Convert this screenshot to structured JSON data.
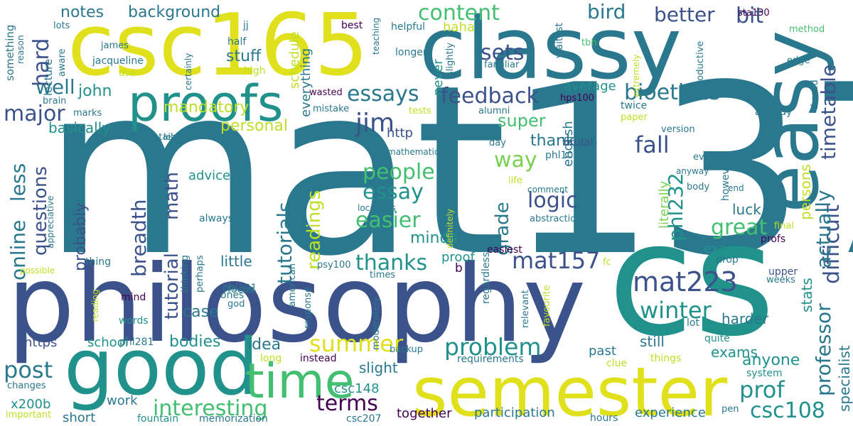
{
  "palette": {
    "dark_purple": "#440154",
    "indigo": "#3b528b",
    "slate": "#414487",
    "teal_blue": "#2a788e",
    "teal": "#21918c",
    "sea_green": "#22a884",
    "green": "#43bf71",
    "lime": "#7ad151",
    "yellow_green": "#bddf26",
    "yellow": "#e0e11c"
  },
  "words": [
    {
      "text": "mat137",
      "color": "teal_blue"
    },
    {
      "text": "cs",
      "color": "teal"
    },
    {
      "text": "philosophy",
      "color": "indigo"
    },
    {
      "text": "classy",
      "color": "teal_blue"
    },
    {
      "text": "csc165",
      "color": "yellow"
    },
    {
      "text": "easy",
      "color": "teal_blue"
    },
    {
      "text": "semester",
      "color": "yellow"
    },
    {
      "text": "good",
      "color": "teal"
    },
    {
      "text": "proofs",
      "color": "teal"
    },
    {
      "text": "time",
      "color": "green"
    },
    {
      "text": "mat223",
      "color": "indigo"
    },
    {
      "text": "interesting",
      "color": "green"
    },
    {
      "text": "problem",
      "color": "teal"
    },
    {
      "text": "winter",
      "color": "teal"
    },
    {
      "text": "summer",
      "color": "yellow"
    },
    {
      "text": "great",
      "color": "green"
    },
    {
      "text": "essay",
      "color": "teal"
    },
    {
      "text": "essays",
      "color": "teal_blue"
    },
    {
      "text": "prof",
      "color": "teal"
    },
    {
      "text": "terms",
      "color": "dark_purple"
    },
    {
      "text": "csc108",
      "color": "teal"
    },
    {
      "text": "post",
      "color": "teal_blue"
    },
    {
      "text": "feedback",
      "color": "indigo"
    },
    {
      "text": "bioethics",
      "color": "teal_blue"
    },
    {
      "text": "logic",
      "color": "indigo"
    },
    {
      "text": "thanks",
      "color": "teal"
    },
    {
      "text": "mat157",
      "color": "indigo"
    },
    {
      "text": "people",
      "color": "green"
    },
    {
      "text": "easier",
      "color": "green"
    },
    {
      "text": "jim",
      "color": "indigo"
    },
    {
      "text": "fall",
      "color": "indigo"
    },
    {
      "text": "way",
      "color": "lime"
    },
    {
      "text": "content",
      "color": "green"
    },
    {
      "text": "bird",
      "color": "teal_blue"
    },
    {
      "text": "sets",
      "color": "indigo"
    },
    {
      "text": "well",
      "color": "teal_blue"
    },
    {
      "text": "major",
      "color": "indigo"
    },
    {
      "text": "hard",
      "color": "indigo"
    },
    {
      "text": "better",
      "color": "indigo"
    },
    {
      "text": "bit",
      "color": "indigo"
    },
    {
      "text": "timetable",
      "color": "indigo"
    },
    {
      "text": "difficult",
      "color": "indigo"
    },
    {
      "text": "professor",
      "color": "teal_blue"
    },
    {
      "text": "actually",
      "color": "teal_blue"
    },
    {
      "text": "phl232",
      "color": "teal"
    },
    {
      "text": "breadth",
      "color": "indigo"
    },
    {
      "text": "tutorial",
      "color": "indigo"
    },
    {
      "text": "math",
      "color": "indigo"
    },
    {
      "text": "tutorials",
      "color": "teal_blue"
    },
    {
      "text": "readings",
      "color": "yellow_green"
    },
    {
      "text": "online",
      "color": "teal_blue"
    },
    {
      "text": "less",
      "color": "teal_blue"
    },
    {
      "text": "questions",
      "color": "indigo"
    },
    {
      "text": "grade",
      "color": "teal_blue"
    },
    {
      "text": "personal",
      "color": "yellow_green"
    },
    {
      "text": "mandatory",
      "color": "yellow_green"
    },
    {
      "text": "notes",
      "color": "teal_blue"
    },
    {
      "text": "background",
      "color": "teal_blue"
    },
    {
      "text": "stuff",
      "color": "teal_blue"
    },
    {
      "text": "john",
      "color": "teal"
    },
    {
      "text": "super",
      "color": "green"
    },
    {
      "text": "thank",
      "color": "teal_blue"
    },
    {
      "text": "minds",
      "color": "teal"
    },
    {
      "text": "anyone",
      "color": "teal"
    },
    {
      "text": "bodies",
      "color": "teal"
    },
    {
      "text": "idea",
      "color": "teal_blue"
    },
    {
      "text": "case",
      "color": "teal_blue"
    },
    {
      "text": "exams",
      "color": "teal"
    },
    {
      "text": "harder",
      "color": "teal_blue"
    },
    {
      "text": "luck",
      "color": "teal_blue"
    },
    {
      "text": "probably",
      "color": "indigo"
    },
    {
      "text": "little",
      "color": "teal_blue"
    },
    {
      "text": "basically",
      "color": "teal"
    },
    {
      "text": "persons",
      "color": "yellow_green"
    },
    {
      "text": "stats",
      "color": "teal"
    },
    {
      "text": "specialist",
      "color": "teal_blue"
    },
    {
      "text": "literally",
      "color": "lime"
    },
    {
      "text": "still",
      "color": "teal_blue"
    },
    {
      "text": "exam",
      "color": "teal"
    },
    {
      "text": "slight",
      "color": "teal_blue"
    },
    {
      "text": "work",
      "color": "teal_blue"
    },
    {
      "text": "csc148",
      "color": "teal"
    },
    {
      "text": "together",
      "color": "dark_purple"
    },
    {
      "text": "participation",
      "color": "teal_blue"
    },
    {
      "text": "experience",
      "color": "teal_blue"
    },
    {
      "text": "short",
      "color": "teal_blue"
    },
    {
      "text": "x200b",
      "color": "teal"
    },
    {
      "text": "https",
      "color": "indigo"
    },
    {
      "text": "school",
      "color": "teal"
    },
    {
      "text": "advice",
      "color": "teal"
    },
    {
      "text": "http",
      "color": "indigo"
    },
    {
      "text": "past",
      "color": "teal_blue"
    },
    {
      "text": "schedule",
      "color": "yellow_green"
    },
    {
      "text": "everything",
      "color": "teal_blue"
    },
    {
      "text": "average",
      "color": "teal"
    },
    {
      "text": "english",
      "color": "teal_blue"
    },
    {
      "text": "haha",
      "color": "yellow_green"
    },
    {
      "text": "never",
      "color": "teal"
    },
    {
      "text": "proof",
      "color": "teal"
    },
    {
      "text": "easiest",
      "color": "dark_purple"
    },
    {
      "text": "phl100",
      "color": "teal_blue"
    },
    {
      "text": "brutal",
      "color": "indigo"
    },
    {
      "text": "day",
      "color": "teal_blue"
    },
    {
      "text": "phl201",
      "color": "teal_blue"
    },
    {
      "text": "phl281",
      "color": "teal_blue"
    },
    {
      "text": "psy100",
      "color": "teal_blue"
    },
    {
      "text": "focus",
      "color": "teal_blue"
    },
    {
      "text": "ones",
      "color": "teal_blue"
    },
    {
      "text": "god",
      "color": "teal_blue"
    },
    {
      "text": "mind",
      "color": "dark_purple"
    },
    {
      "text": "thing",
      "color": "teal_blue"
    },
    {
      "text": "words",
      "color": "teal"
    },
    {
      "text": "instead",
      "color": "dark_purple"
    },
    {
      "text": "long",
      "color": "yellow_green"
    },
    {
      "text": "requirements",
      "color": "teal_blue"
    },
    {
      "text": "backup",
      "color": "teal_blue"
    },
    {
      "text": "things",
      "color": "yellow_green"
    },
    {
      "text": "clue",
      "color": "yellow_green"
    },
    {
      "text": "system",
      "color": "teal"
    },
    {
      "text": "hours",
      "color": "teal_blue"
    },
    {
      "text": "pen",
      "color": "teal_blue"
    },
    {
      "text": "quite",
      "color": "teal"
    },
    {
      "text": "lot",
      "color": "teal_blue"
    },
    {
      "text": "weeks",
      "color": "teal_blue"
    },
    {
      "text": "upper",
      "color": "indigo"
    },
    {
      "text": "week",
      "color": "teal_blue"
    },
    {
      "text": "profs",
      "color": "dark_purple"
    },
    {
      "text": "drop",
      "color": "teal_blue"
    },
    {
      "text": "end",
      "color": "teal_blue"
    },
    {
      "text": "body",
      "color": "teal_blue"
    },
    {
      "text": "anyway",
      "color": "teal_blue"
    },
    {
      "text": "ever",
      "color": "teal_blue"
    },
    {
      "text": "version",
      "color": "teal_blue"
    },
    {
      "text": "final",
      "color": "yellow_green"
    },
    {
      "text": "however",
      "color": "teal_blue"
    },
    {
      "text": "already",
      "color": "teal_blue"
    },
    {
      "text": "twice",
      "color": "teal_blue"
    },
    {
      "text": "paper",
      "color": "yellow_green"
    },
    {
      "text": "thread",
      "color": "teal_blue"
    },
    {
      "text": "edge",
      "color": "teal_blue"
    },
    {
      "text": "method",
      "color": "green"
    },
    {
      "text": "sta130",
      "color": "dark_purple"
    },
    {
      "text": "waitlist",
      "color": "teal_blue"
    },
    {
      "text": "tbh",
      "color": "green"
    },
    {
      "text": "productive",
      "color": "teal_blue"
    },
    {
      "text": "extremely",
      "color": "yellow_green"
    },
    {
      "text": "hps100",
      "color": "dark_purple"
    },
    {
      "text": "alumni",
      "color": "teal_blue"
    },
    {
      "text": "familiar",
      "color": "teal_blue"
    },
    {
      "text": "longer",
      "color": "teal_blue"
    },
    {
      "text": "best",
      "color": "dark_purple"
    },
    {
      "text": "helpful",
      "color": "teal_blue"
    },
    {
      "text": "teaching",
      "color": "teal_blue"
    },
    {
      "text": "slightly",
      "color": "teal_blue"
    },
    {
      "text": "tests",
      "color": "yellow_green"
    },
    {
      "text": "mistake",
      "color": "teal_blue"
    },
    {
      "text": "wasted",
      "color": "dark_purple"
    },
    {
      "text": "high",
      "color": "yellow_green"
    },
    {
      "text": "half",
      "color": "teal_blue"
    },
    {
      "text": "jj",
      "color": "teal_blue"
    },
    {
      "text": "lots",
      "color": "teal_blue"
    },
    {
      "text": "certainly",
      "color": "teal_blue"
    },
    {
      "text": "james",
      "color": "teal_blue"
    },
    {
      "text": "jacqueline",
      "color": "teal_blue"
    },
    {
      "text": "use",
      "color": "yellow_green"
    },
    {
      "text": "lecture",
      "color": "teal_blue"
    },
    {
      "text": "aware",
      "color": "teal_blue"
    },
    {
      "text": "something",
      "color": "teal_blue"
    },
    {
      "text": "reason",
      "color": "teal_blue"
    },
    {
      "text": "brain",
      "color": "teal_blue"
    },
    {
      "text": "marks",
      "color": "teal_blue"
    },
    {
      "text": "detailshi",
      "color": "teal_blue"
    },
    {
      "text": "least",
      "color": "teal_blue"
    },
    {
      "text": "mathematics",
      "color": "teal_blue"
    },
    {
      "text": "slides",
      "color": "teal_blue"
    },
    {
      "text": "life",
      "color": "yellow_green"
    },
    {
      "text": "comment",
      "color": "teal_blue"
    },
    {
      "text": "locations",
      "color": "teal_blue"
    },
    {
      "text": "abstraction",
      "color": "teal_blue"
    },
    {
      "text": "definitely",
      "color": "yellow_green"
    },
    {
      "text": "always",
      "color": "teal_blue"
    },
    {
      "text": "appreciative",
      "color": "teal_blue"
    },
    {
      "text": "possible",
      "color": "yellow_green"
    },
    {
      "text": "thinking",
      "color": "teal_blue"
    },
    {
      "text": "perhaps",
      "color": "teal_blue"
    },
    {
      "text": "reading",
      "color": "yellow_green"
    },
    {
      "text": "b",
      "color": "dark_purple"
    },
    {
      "text": "regardless",
      "color": "teal_blue"
    },
    {
      "text": "times",
      "color": "teal_blue"
    },
    {
      "text": "american",
      "color": "teal_blue"
    },
    {
      "text": "response",
      "color": "teal_blue"
    },
    {
      "text": "moderately",
      "color": "teal_blue"
    },
    {
      "text": "relevant",
      "color": "teal_blue"
    },
    {
      "text": "favourite",
      "color": "yellow_green"
    },
    {
      "text": "fc",
      "color": "yellow_green"
    },
    {
      "text": "changes",
      "color": "teal_blue"
    },
    {
      "text": "important",
      "color": "yellow_green"
    },
    {
      "text": "fountain",
      "color": "teal"
    },
    {
      "text": "memorization",
      "color": "teal_blue"
    },
    {
      "text": "csc207",
      "color": "teal_blue"
    }
  ]
}
